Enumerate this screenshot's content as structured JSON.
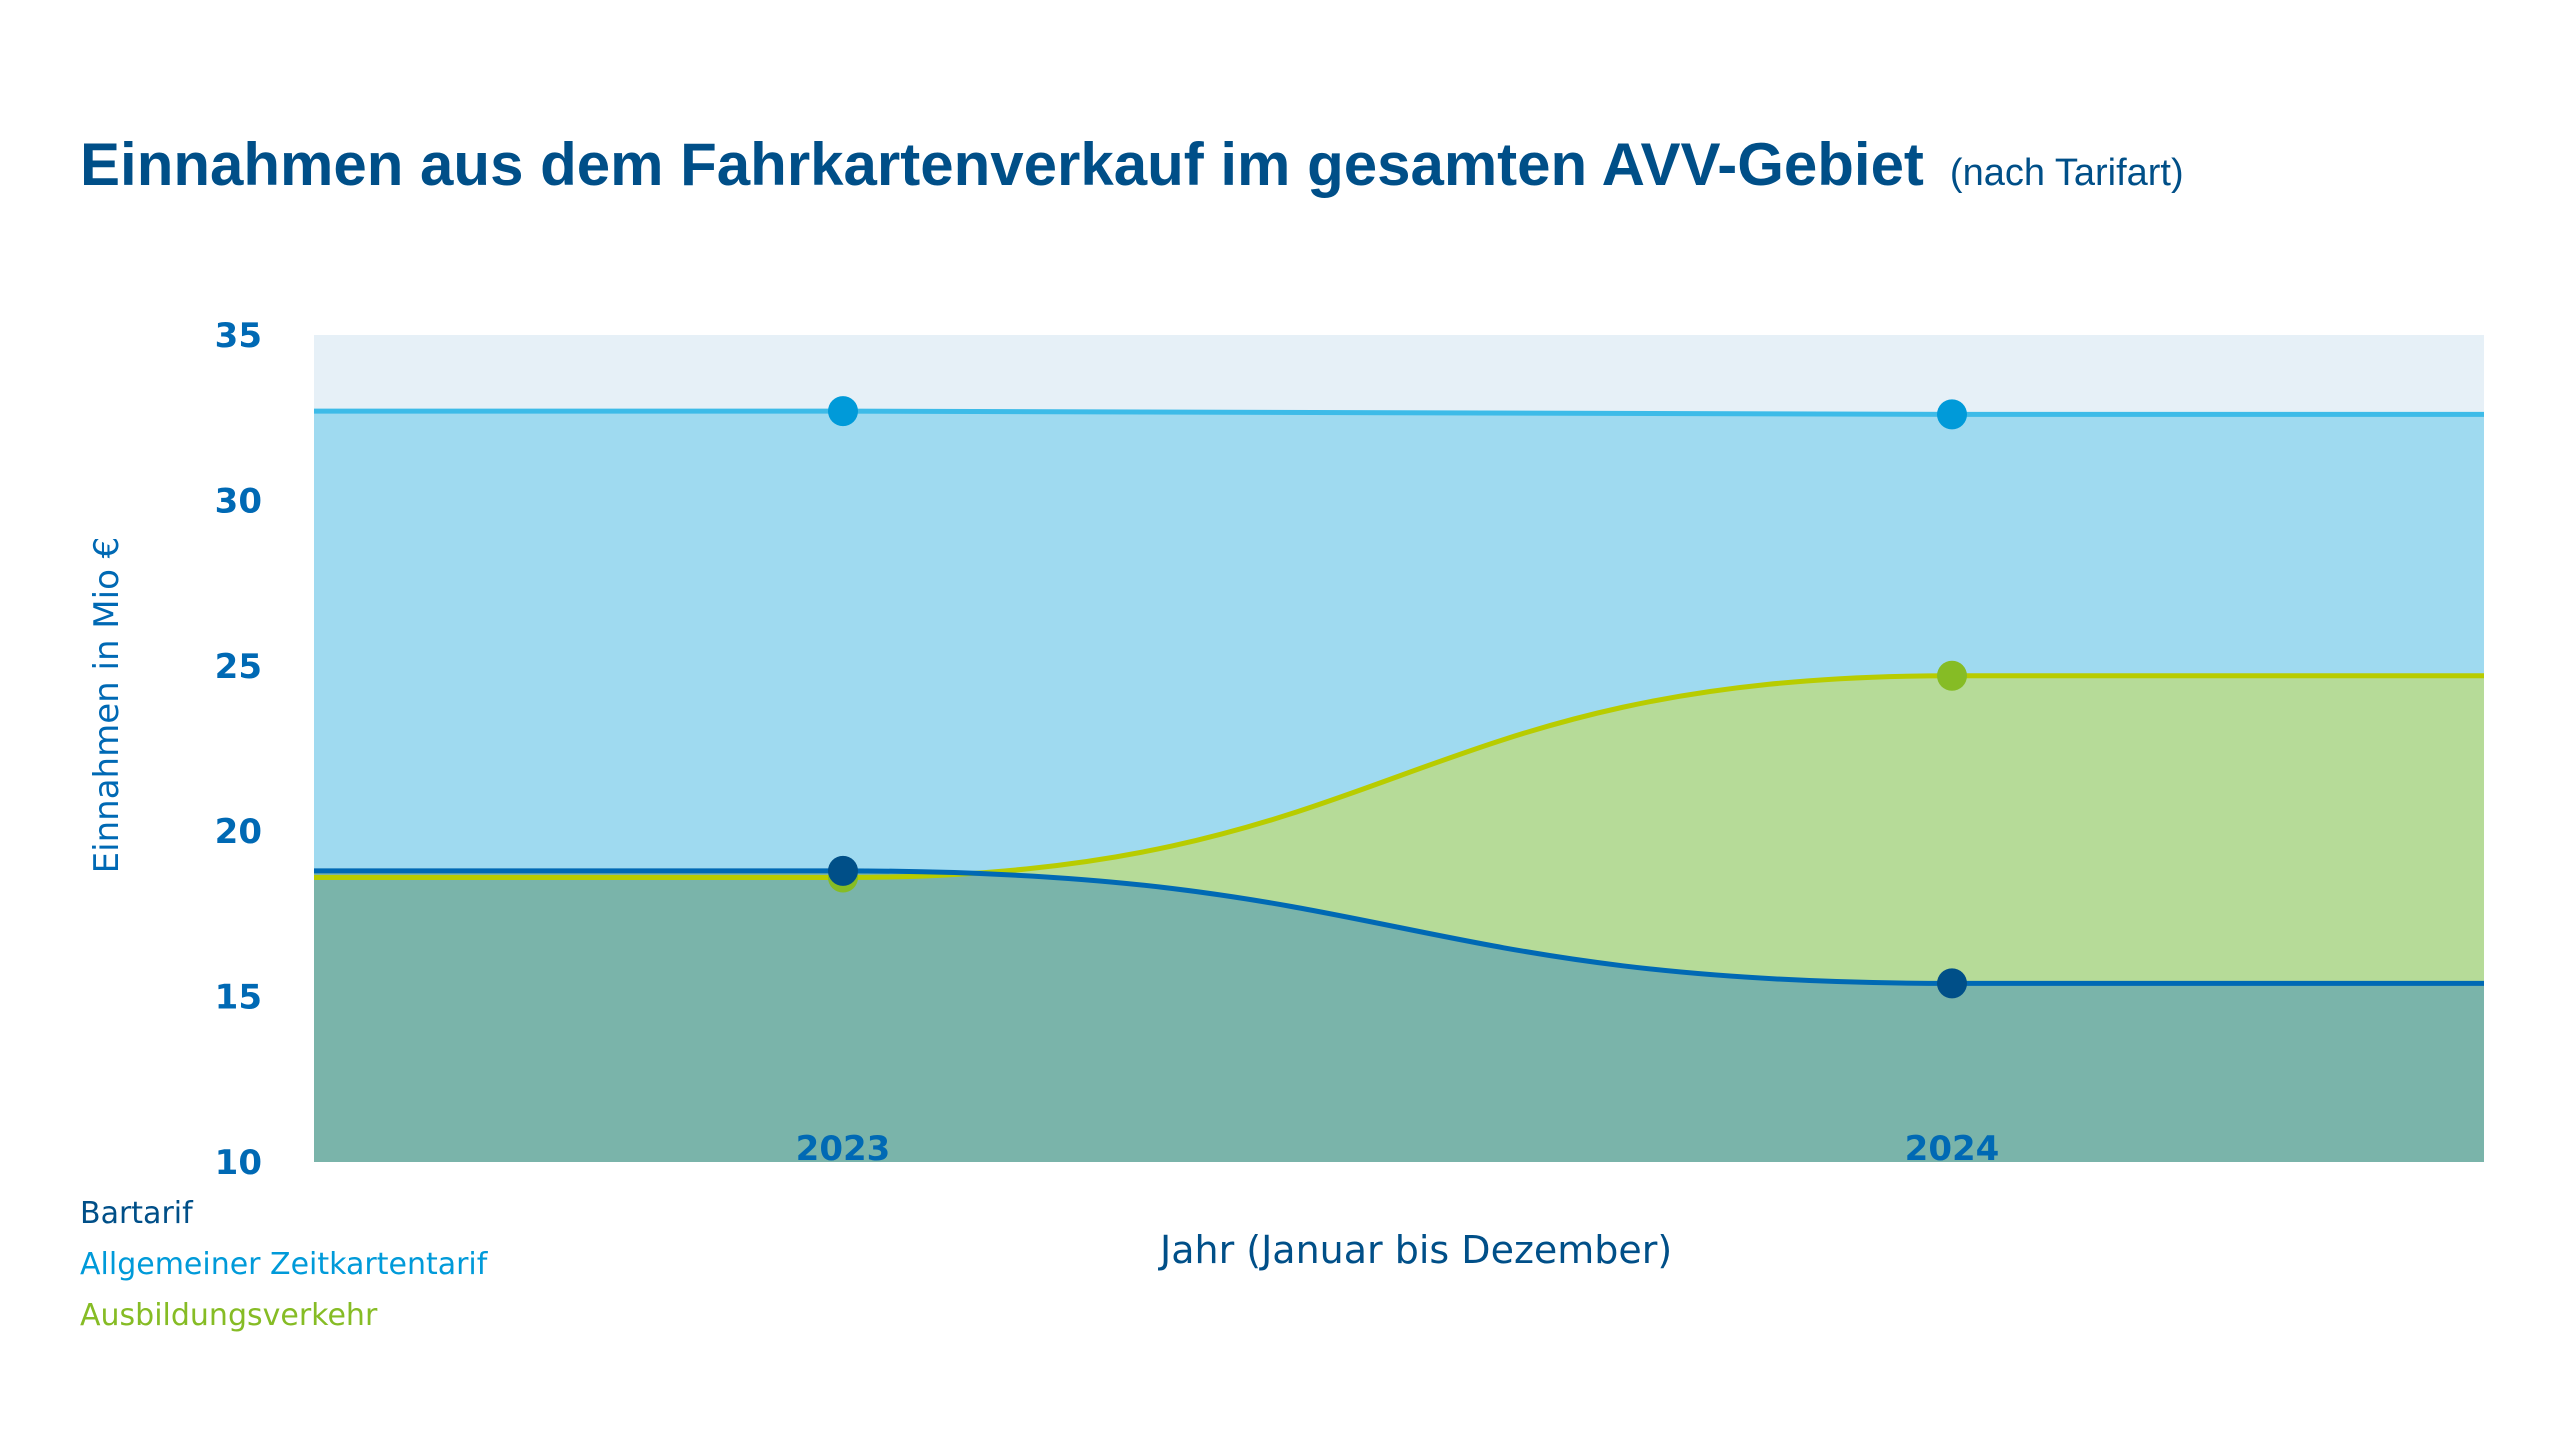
{
  "chart_data": {
    "type": "area",
    "title": "Einnahmen aus dem Fahrkartenverkauf im gesamten AVV-Gebiet",
    "subtitle": "(nach Tarifart)",
    "xlabel": "Jahr (Januar bis Dezember)",
    "ylabel": "Einnahmen in Mio €",
    "categories": [
      "2023",
      "2024"
    ],
    "ylim": [
      10,
      35
    ],
    "yticks": [
      "35",
      "30",
      "25",
      "20",
      "15",
      "10"
    ],
    "grid": false,
    "legend_position": "bottom-left",
    "series": [
      {
        "name": "Allgemeiner Zeitkartentarif",
        "values": [
          32.7,
          32.6
        ],
        "line_color": "#3dbbe8",
        "marker_color": "#009ad9",
        "fill_color": "#9fdaf0"
      },
      {
        "name": "Ausbildungsverkehr",
        "values": [
          18.6,
          24.7
        ],
        "line_color": "#b8cc00",
        "marker_color": "#86bc25",
        "fill_color": "#b6db98"
      },
      {
        "name": "Bartarif",
        "values": [
          18.8,
          15.4
        ],
        "line_color": "#0069b4",
        "marker_color": "#004f88",
        "fill_color": "#7ab4aa"
      }
    ],
    "plot_background": "#e6f0f7"
  }
}
